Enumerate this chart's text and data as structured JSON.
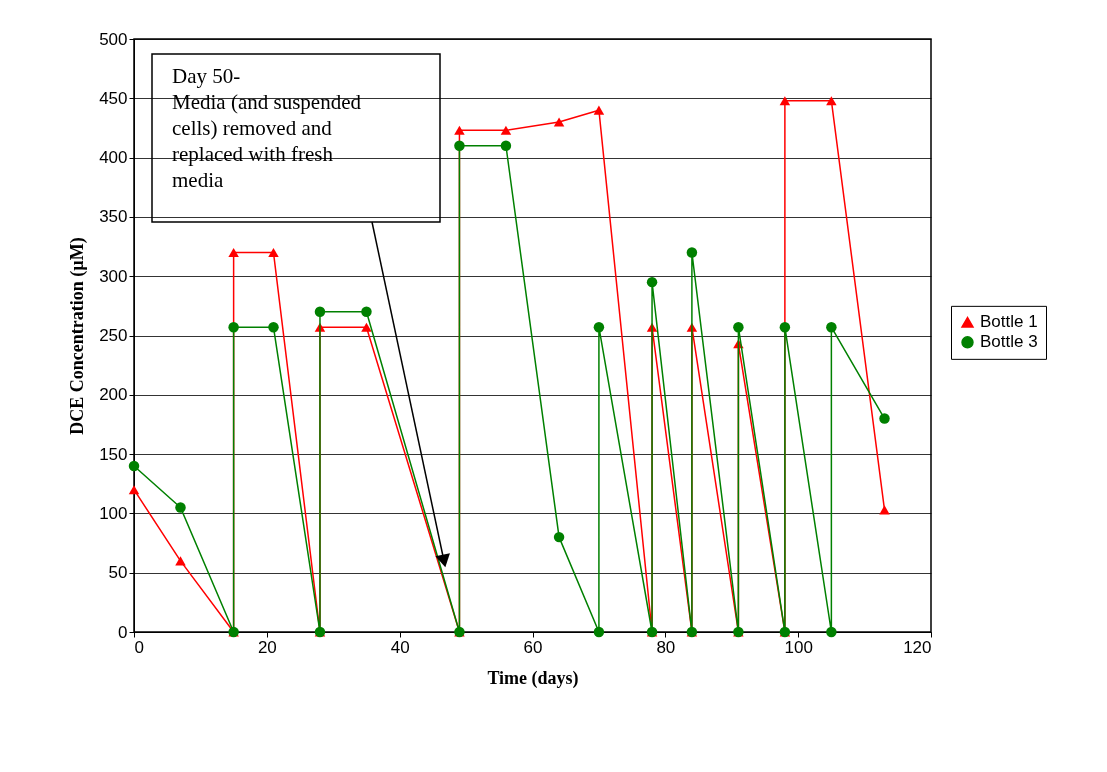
{
  "chart_data": {
    "type": "line",
    "xlabel": "Time (days)",
    "ylabel": "DCE Concentration (µM)",
    "xlim": [
      0,
      120
    ],
    "xticks": [
      0,
      20,
      40,
      60,
      80,
      100,
      120
    ],
    "ylim": [
      0,
      500
    ],
    "yticks": [
      0,
      50,
      100,
      150,
      200,
      250,
      300,
      350,
      400,
      450,
      500
    ],
    "grid": "y",
    "legend": "right",
    "line_style": "solid",
    "annotations": [
      "Day 50-\nMedia (and suspended\ncells) removed and\nreplaced with fresh\nmedia"
    ],
    "series": [
      {
        "name": "Bottle 1",
        "color": "#ff0000",
        "marker": "triangle",
        "x": [
          0,
          7,
          15,
          15,
          21,
          28,
          28,
          35,
          49,
          49,
          56,
          64,
          70,
          78,
          78,
          84,
          84,
          91,
          91,
          98,
          98,
          105,
          113
        ],
        "values": [
          120,
          60,
          0,
          320,
          320,
          0,
          257,
          257,
          0,
          423,
          423,
          430,
          440,
          0,
          257,
          0,
          257,
          0,
          243,
          0,
          448,
          448,
          103
        ]
      },
      {
        "name": "Bottle 3",
        "color": "#008000",
        "marker": "circle",
        "x": [
          0,
          7,
          15,
          15,
          21,
          28,
          28,
          35,
          49,
          49,
          56,
          64,
          70,
          70,
          78,
          78,
          84,
          84,
          91,
          91,
          98,
          98,
          105,
          105,
          113
        ],
        "values": [
          140,
          105,
          0,
          257,
          257,
          0,
          270,
          270,
          0,
          410,
          410,
          80,
          0,
          257,
          0,
          295,
          0,
          320,
          0,
          257,
          0,
          257,
          0,
          257,
          180
        ]
      }
    ]
  }
}
